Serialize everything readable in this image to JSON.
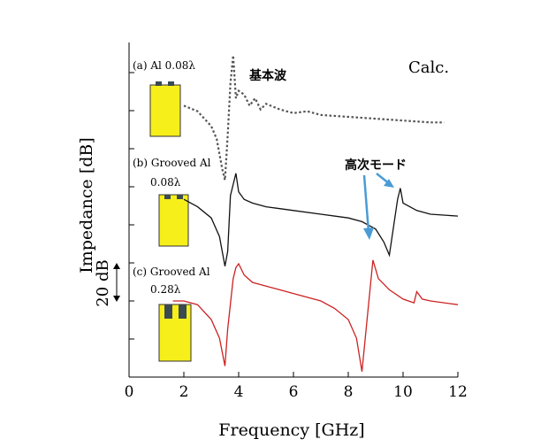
{
  "chart_data": {
    "type": "line",
    "xlabel": "Frequency [GHz]",
    "ylabel": "Impedance [dB]",
    "xlim": [
      0,
      12
    ],
    "xticks": [
      0,
      2,
      4,
      6,
      8,
      10,
      12
    ],
    "grid": false,
    "corner_label": "Calc.",
    "scale_bar_label": "20 dB",
    "annotations": {
      "fundamental": "基本波",
      "higher_mode": "高次モード"
    },
    "series": [
      {
        "label_line1": "(a) Al 0.08λ",
        "label_line2": "",
        "style": "dotted",
        "color": "#555555",
        "x": [
          2.0,
          2.5,
          3.0,
          3.2,
          3.4,
          3.5,
          3.6,
          3.7,
          3.8,
          3.9,
          4.0,
          4.2,
          4.4,
          4.6,
          4.8,
          5.0,
          5.5,
          6.0,
          6.5,
          7.0,
          8.0,
          9.0,
          10.0,
          11.0,
          11.5
        ],
        "y": [
          6,
          3,
          -5,
          -12,
          -28,
          -34,
          -10,
          18,
          33,
          10,
          14,
          12,
          6,
          10,
          4,
          7,
          4,
          2,
          3,
          1,
          0,
          -1,
          -2,
          -3,
          -3
        ]
      },
      {
        "label_line1": "(b) Grooved Al",
        "label_line2": "0.08λ",
        "style": "solid",
        "color": "#111111",
        "x": [
          2.0,
          2.5,
          3.0,
          3.3,
          3.5,
          3.6,
          3.7,
          3.9,
          4.0,
          4.2,
          4.5,
          5.0,
          5.5,
          6.0,
          7.0,
          8.0,
          8.5,
          9.0,
          9.3,
          9.5,
          9.6,
          9.8,
          9.9,
          10.0,
          10.5,
          11.0,
          12.0
        ],
        "y": [
          8,
          4,
          -2,
          -12,
          -28,
          -20,
          10,
          22,
          12,
          8,
          6,
          4,
          3,
          2,
          0,
          -2,
          -4,
          -8,
          -15,
          -22,
          -12,
          8,
          14,
          6,
          2,
          0,
          -1
        ]
      },
      {
        "label_line1": "(c) Grooved Al",
        "label_line2": "0.28λ",
        "style": "solid",
        "color": "#cc2222",
        "x": [
          1.6,
          2.0,
          2.5,
          3.0,
          3.3,
          3.5,
          3.6,
          3.8,
          3.9,
          4.0,
          4.2,
          4.5,
          5.0,
          5.5,
          6.0,
          7.0,
          7.5,
          8.0,
          8.3,
          8.5,
          8.7,
          8.9,
          9.1,
          9.5,
          10.0,
          10.4,
          10.5,
          10.7,
          11.0,
          12.0
        ],
        "y": [
          0,
          0,
          -2,
          -10,
          -20,
          -35,
          -15,
          12,
          18,
          20,
          14,
          10,
          8,
          6,
          4,
          0,
          -4,
          -10,
          -20,
          -38,
          -8,
          22,
          12,
          6,
          1,
          -1,
          5,
          1,
          0,
          -2
        ]
      }
    ]
  }
}
